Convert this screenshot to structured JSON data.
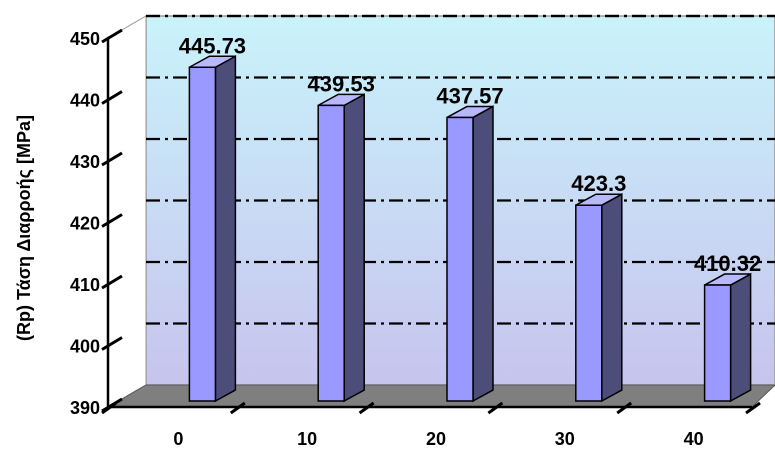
{
  "chart_data": {
    "type": "bar",
    "title": "",
    "xlabel": "",
    "ylabel": "(Rp) Τάση Διαρροής [MPa]",
    "categories": [
      "0",
      "10",
      "20",
      "30",
      "40"
    ],
    "values": [
      445.73,
      439.53,
      437.57,
      423.3,
      410.32
    ],
    "value_labels": [
      "445.73",
      "439.53",
      "437.57",
      "423.3",
      "410.32"
    ],
    "y_ticks": [
      390,
      400,
      410,
      420,
      430,
      440,
      450
    ],
    "ylim": [
      390,
      450
    ],
    "grid": true,
    "three_d": true,
    "legend": "none",
    "colors": {
      "bar_front": "#9999ff",
      "bar_side": "#4d4d7a",
      "bar_top": "#b8b8ff",
      "bar_outline": "#000000",
      "wall_top": "#c9f3fb",
      "wall_bottom": "#c7c4ee",
      "floor": "#7f7f7f",
      "gridline": "#000000"
    }
  }
}
